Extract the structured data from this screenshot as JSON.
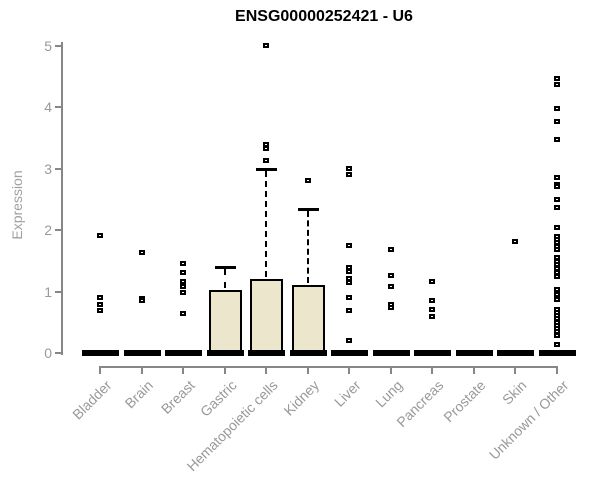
{
  "chart_data": {
    "type": "box",
    "title": "ENSG00000252421 - U6",
    "xlabel": "",
    "ylabel": "Expression",
    "ylim": [
      0,
      5
    ],
    "yticks": [
      0,
      1,
      2,
      3,
      4,
      5
    ],
    "grid": false,
    "legend": null,
    "box_fill_color": "#ece7cc",
    "box_border_color": "#000000",
    "axis_color": "#878787",
    "tick_label_color": "#999999",
    "categories": [
      "Bladder",
      "Brain",
      "Breast",
      "Gastric",
      "Hematopoietic cells",
      "Kidney",
      "Liver",
      "Lung",
      "Pancreas",
      "Prostate",
      "Skin",
      "Unknown / Other"
    ],
    "boxes": [
      {
        "category": "Bladder",
        "median": 0,
        "q1": 0,
        "q3": 0,
        "whisker_low": 0,
        "whisker_high": 0,
        "outliers": [
          1.9,
          0.9,
          0.78,
          0.68
        ]
      },
      {
        "category": "Brain",
        "median": 0,
        "q1": 0,
        "q3": 0,
        "whisker_low": 0,
        "whisker_high": 0,
        "outliers": [
          1.63,
          0.88,
          0.85
        ]
      },
      {
        "category": "Breast",
        "median": 0,
        "q1": 0,
        "q3": 0,
        "whisker_low": 0,
        "whisker_high": 0,
        "outliers": [
          1.45,
          1.3,
          1.16,
          1.08,
          0.98,
          0.64
        ]
      },
      {
        "category": "Gastric",
        "median": 0,
        "q1": 0,
        "q3": 1.02,
        "whisker_low": 0,
        "whisker_high": 1.4,
        "outliers": []
      },
      {
        "category": "Hematopoietic cells",
        "median": 0,
        "q1": 0,
        "q3": 1.2,
        "whisker_low": 0,
        "whisker_high": 3.0,
        "outliers": [
          5.0,
          3.38,
          3.32,
          3.12
        ]
      },
      {
        "category": "Kidney",
        "median": 0,
        "q1": 0,
        "q3": 1.1,
        "whisker_low": 0,
        "whisker_high": 2.35,
        "outliers": [
          2.8
        ]
      },
      {
        "category": "Liver",
        "median": 0,
        "q1": 0,
        "q3": 0,
        "whisker_low": 0,
        "whisker_high": 0,
        "outliers": [
          3.0,
          2.9,
          1.75,
          1.38,
          1.32,
          1.2,
          1.14,
          0.9,
          0.68,
          0.2
        ]
      },
      {
        "category": "Lung",
        "median": 0,
        "q1": 0,
        "q3": 0,
        "whisker_low": 0,
        "whisker_high": 0,
        "outliers": [
          1.68,
          1.25,
          1.08,
          0.78,
          0.74
        ]
      },
      {
        "category": "Pancreas",
        "median": 0,
        "q1": 0,
        "q3": 0,
        "whisker_low": 0,
        "whisker_high": 0,
        "outliers": [
          1.15,
          0.85,
          0.7,
          0.58
        ]
      },
      {
        "category": "Prostate",
        "median": 0,
        "q1": 0,
        "q3": 0,
        "whisker_low": 0,
        "whisker_high": 0,
        "outliers": []
      },
      {
        "category": "Skin",
        "median": 0,
        "q1": 0,
        "q3": 0,
        "whisker_low": 0,
        "whisker_high": 0,
        "outliers": [
          1.8
        ]
      },
      {
        "category": "Unknown / Other",
        "median": 0,
        "q1": 0,
        "q3": 0,
        "whisker_low": 0,
        "whisker_high": 0,
        "outliers": [
          4.46,
          4.36,
          3.97,
          3.76,
          3.47,
          2.85,
          2.74,
          2.7,
          2.49,
          2.36,
          2.04,
          1.89,
          1.84,
          1.79,
          1.73,
          1.68,
          1.55,
          1.49,
          1.43,
          1.37,
          1.31,
          1.24,
          1.03,
          0.95,
          0.86,
          0.7,
          0.65,
          0.6,
          0.55,
          0.49,
          0.44,
          0.39,
          0.34,
          0.28,
          0.13
        ]
      }
    ]
  }
}
